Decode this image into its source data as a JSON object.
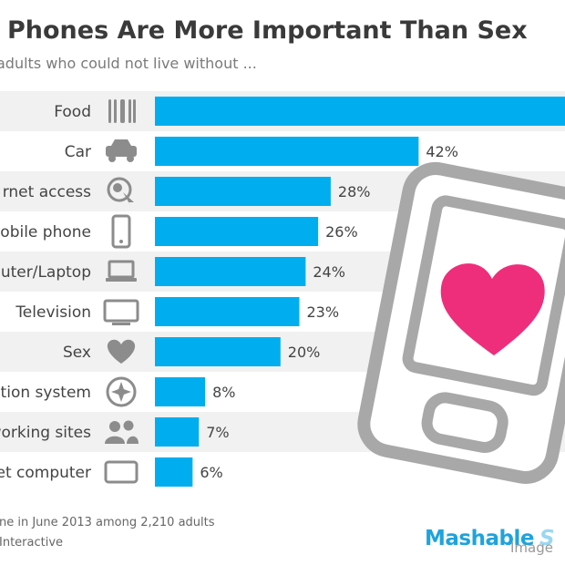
{
  "header": {
    "title": "Phones Are More Important Than Sex",
    "subtitle": "adults who could not live without ..."
  },
  "footer": {
    "source": "ne in June 2013 among 2,210 adults",
    "attribution": "Interactive",
    "brand": "Mashable",
    "brand_suffix": "S",
    "credit": "Image"
  },
  "colors": {
    "bar": "#00aeef",
    "row_alt": "#f1f1f1",
    "icon": "#8c8c8c",
    "phone": "#a8a8a8",
    "heart": "#ee2e7b"
  },
  "chart_data": {
    "type": "bar",
    "orientation": "horizontal",
    "title": "Phones Are More Important Than Sex",
    "categories": [
      "Food",
      "Car",
      "rnet access",
      "obile phone",
      "uter/Laptop",
      "Television",
      "Sex",
      "ation system",
      "working sites",
      "et computer"
    ],
    "values": [
      null,
      42,
      28,
      26,
      24,
      23,
      20,
      8,
      7,
      6
    ],
    "value_labels": [
      "",
      "42%",
      "28%",
      "26%",
      "24%",
      "23%",
      "20%",
      "8%",
      "7%",
      "6%"
    ],
    "icons": [
      "cutlery-icon",
      "car-icon",
      "globe-cursor-icon",
      "mobile-phone-icon",
      "laptop-icon",
      "television-icon",
      "heart-icon",
      "compass-icon",
      "people-icon",
      "tablet-icon"
    ],
    "xlabel": "",
    "ylabel": "",
    "xlim": [
      0,
      42
    ],
    "legend": "none"
  }
}
